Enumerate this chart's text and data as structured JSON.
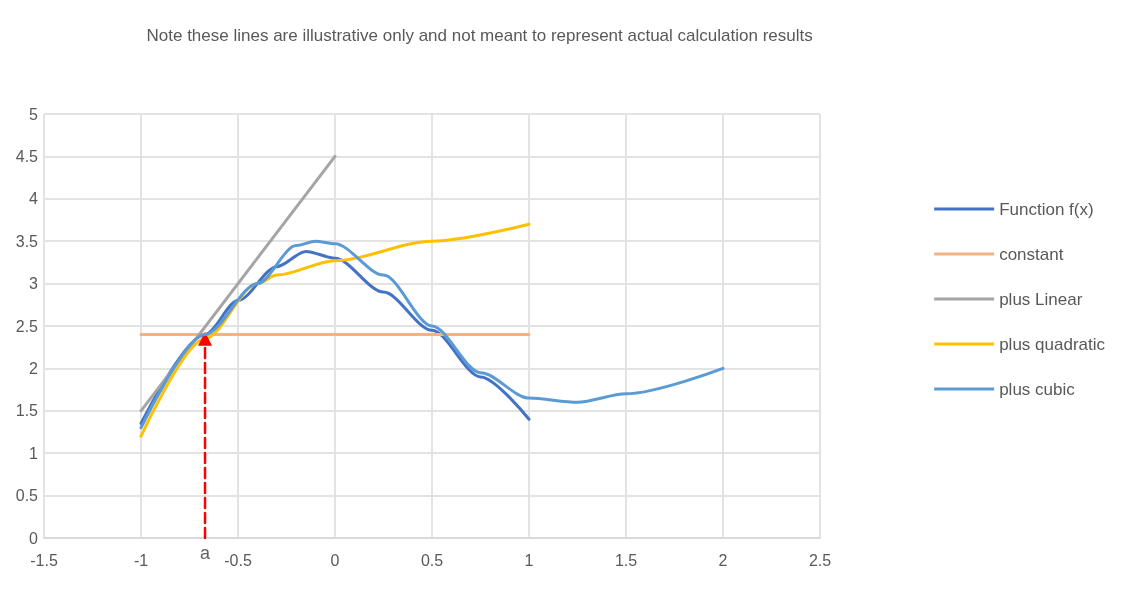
{
  "chart_data": {
    "type": "line",
    "title": "Note these lines are illustrative only and not meant to represent actual calculation results",
    "xlim": [
      -1.5,
      2.5
    ],
    "xticks": [
      -1.5,
      -1,
      -0.5,
      0,
      0.5,
      1,
      1.5,
      2,
      2.5
    ],
    "ylim": [
      0,
      5
    ],
    "yticks": [
      0,
      0.5,
      1,
      1.5,
      2,
      2.5,
      3,
      3.5,
      4,
      4.5,
      5
    ],
    "grid": true,
    "legend": "right",
    "marker": "none",
    "line_style": "solid",
    "series": [
      {
        "name": "Function f(x)",
        "color": "#4472c4",
        "x": [
          -1,
          -0.67,
          -0.5,
          -0.3,
          -0.15,
          0,
          0.25,
          0.5,
          0.75,
          1
        ],
        "values": [
          1.35,
          2.4,
          2.8,
          3.2,
          3.38,
          3.3,
          2.9,
          2.45,
          1.9,
          1.4
        ]
      },
      {
        "name": "constant",
        "color": "#f4b183",
        "x": [
          -1,
          1
        ],
        "values": [
          2.4,
          2.4
        ]
      },
      {
        "name": "plus Linear",
        "color": "#a5a5a5",
        "x": [
          -1,
          0
        ],
        "values": [
          1.5,
          4.5
        ]
      },
      {
        "name": "plus quadratic",
        "color": "#ffc000",
        "x": [
          -1,
          -0.67,
          -0.4,
          -0.3,
          0,
          0.5,
          1
        ],
        "values": [
          1.2,
          2.35,
          3.0,
          3.1,
          3.27,
          3.5,
          3.7
        ]
      },
      {
        "name": "plus cubic",
        "color": "#5b9bd5",
        "x": [
          -1,
          -0.67,
          -0.4,
          -0.2,
          -0.1,
          0,
          0.25,
          0.5,
          0.75,
          1,
          1.25,
          1.5,
          2
        ],
        "values": [
          1.3,
          2.4,
          3.0,
          3.45,
          3.5,
          3.47,
          3.1,
          2.5,
          1.95,
          1.65,
          1.6,
          1.7,
          2.0
        ]
      },
      {
        "color": "#ff0000",
        "x": [
          -0.67,
          -0.67
        ],
        "values": [
          0,
          2.35
        ],
        "line_style": "dashed",
        "marker": "triangle"
      }
    ],
    "annotations": [
      {
        "text": "a",
        "x": -0.67,
        "y": 0
      }
    ]
  }
}
